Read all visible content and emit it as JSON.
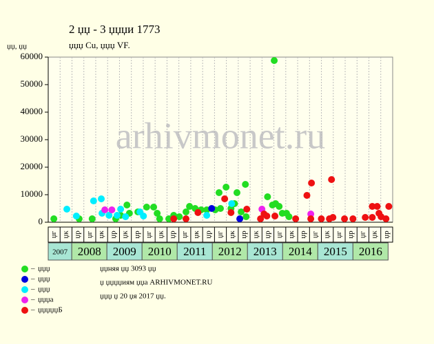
{
  "title": "2 џџ - 3 џџџи 1773",
  "subtitle": "џџџ Cu, џџџ VF.",
  "watermark": "arhivmonet.ru",
  "info": [
    "џџняя џџ 3093 џџ",
    "џ џџџџиям џџа ARHIVMONET.RU",
    "џџџ џ 20 џя 2017 џџ."
  ],
  "chart_data": {
    "type": "scatter",
    "y_label": "џџ, џџ",
    "xlim": [
      2007.33,
      2017.13
    ],
    "ylim": [
      0,
      60000
    ],
    "yticks": [
      0,
      10000,
      20000,
      30000,
      40000,
      50000,
      60000
    ],
    "year_bands": [
      2007,
      2008,
      2009,
      2010,
      2011,
      2012,
      2013,
      2014,
      2015,
      2016
    ],
    "column_labels": [
      "џг",
      "џк",
      "џр",
      "џг",
      "џк",
      "џр",
      "џк",
      "џр",
      "џг",
      "џк",
      "џр",
      "џг",
      "џк",
      "џр",
      "џг",
      "џк",
      "џр",
      "џк",
      "џр",
      "џг",
      "џк",
      "џр",
      "џг",
      "џк",
      "џг",
      "џр",
      "џг",
      "џк",
      "џр"
    ],
    "series": [
      {
        "name": "џџџ",
        "color": "#22dd22",
        "x": [
          2007.49,
          2008.21,
          2008.58,
          2009.25,
          2009.39,
          2009.57,
          2009.64,
          2009.88,
          2010.13,
          2010.33,
          2010.43,
          2010.5,
          2010.76,
          2010.9,
          2011.06,
          2011.25,
          2011.35,
          2011.51,
          2011.68,
          2011.84,
          2012.08,
          2012.19,
          2012.23,
          2012.39,
          2012.53,
          2012.63,
          2012.7,
          2012.82,
          2012.94,
          2012.96,
          2013.57,
          2013.71,
          2013.76,
          2013.8,
          2013.9,
          2013.99,
          2014.11,
          2014.18
        ],
        "values": [
          1250,
          1250,
          1250,
          1250,
          2500,
          6250,
          3250,
          3750,
          5500,
          5500,
          3250,
          1250,
          1250,
          2500,
          2000,
          3750,
          5750,
          5000,
          4500,
          4500,
          4500,
          10750,
          5000,
          12750,
          5000,
          6750,
          10750,
          3750,
          13750,
          2000,
          9250,
          6250,
          58750,
          6750,
          5750,
          3250,
          3250,
          2000
        ]
      },
      {
        "name": "џџџ",
        "color": "#0000dd",
        "x": [
          2011.98,
          2012.78
        ],
        "values": [
          5000,
          1250
        ]
      },
      {
        "name": "џџџ",
        "color": "#00eeff",
        "x": [
          2007.86,
          2008.13,
          2008.62,
          2008.84,
          2008.86,
          2009.06,
          2009.29,
          2009.39,
          2009.53,
          2009.94,
          2010.04,
          2011.84,
          2012.55
        ],
        "values": [
          4750,
          2250,
          7750,
          8500,
          3250,
          2500,
          2500,
          4750,
          2000,
          3750,
          2250,
          2500,
          6750
        ]
      },
      {
        "name": "џџџа",
        "color": "#ee22ee",
        "x": [
          2008.94,
          2009.14,
          2013.41,
          2014.8
        ],
        "values": [
          4500,
          4500,
          4750,
          3000
        ]
      },
      {
        "name": "џџџџџБ",
        "color": "#ee1111",
        "x": [
          2010.9,
          2011.25,
          2011.59,
          2012.35,
          2012.53,
          2012.98,
          2013.37,
          2013.47,
          2013.55,
          2013.78,
          2014.37,
          2014.69,
          2014.8,
          2014.82,
          2015.1,
          2015.33,
          2015.39,
          2015.43,
          2015.76,
          2016.0,
          2016.35,
          2016.55,
          2016.55,
          2016.69,
          2016.74,
          2016.8,
          2016.94,
          2017.02
        ],
        "values": [
          1250,
          1250,
          3500,
          8500,
          3500,
          4750,
          1250,
          3000,
          2250,
          2250,
          1250,
          9750,
          1250,
          14250,
          1250,
          1250,
          15500,
          1750,
          1250,
          1250,
          1750,
          5750,
          1750,
          5750,
          3250,
          2000,
          1250,
          5750
        ]
      }
    ]
  }
}
